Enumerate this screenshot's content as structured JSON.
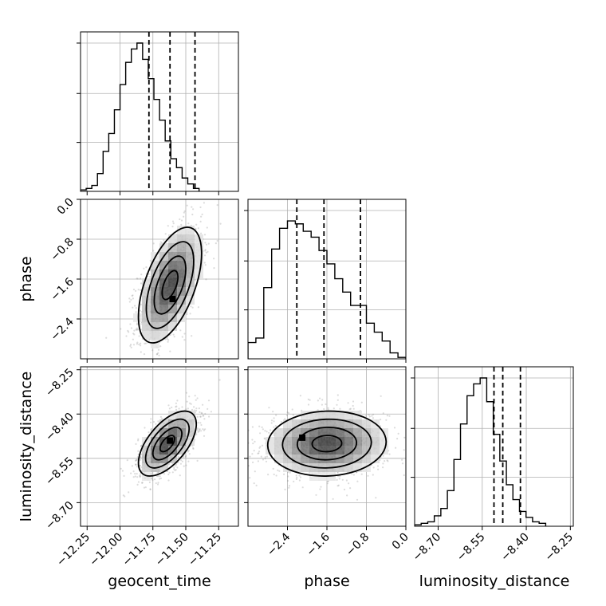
{
  "chart_data": {
    "type": "corner",
    "parameters": [
      "geocent_time",
      "phase",
      "luminosity_distance"
    ],
    "grid": true,
    "ranges": {
      "geocent_time": [
        -12.3,
        -11.1
      ],
      "phase": [
        -3.2,
        0.0
      ],
      "luminosity_distance": [
        -8.78,
        -8.24
      ]
    },
    "ticks": {
      "geocent_time": [
        "-12.25",
        "-12.00",
        "-11.75",
        "-11.50",
        "-11.25"
      ],
      "phase": [
        "-2.4",
        "-1.6",
        "-0.8",
        "0.0"
      ],
      "luminosity_distance": [
        "-8.70",
        "-8.55",
        "-8.40",
        "-8.25"
      ]
    },
    "marginals": {
      "geocent_time": {
        "bin_edges_start": -12.3,
        "bin_width": 0.0429,
        "counts": [
          0.01,
          0.02,
          0.04,
          0.12,
          0.27,
          0.39,
          0.55,
          0.72,
          0.87,
          0.96,
          1.0,
          0.89,
          0.76,
          0.62,
          0.48,
          0.34,
          0.22,
          0.16,
          0.09,
          0.05,
          0.02
        ],
        "quantiles": [
          -11.78,
          -11.62,
          -11.43
        ]
      },
      "phase": {
        "bin_edges_start": -3.2,
        "bin_width": 0.16,
        "counts": [
          0.11,
          0.14,
          0.48,
          0.74,
          0.88,
          0.93,
          0.91,
          0.86,
          0.82,
          0.73,
          0.64,
          0.54,
          0.45,
          0.36,
          0.36,
          0.24,
          0.18,
          0.12,
          0.04,
          0.01
        ],
        "quantiles": [
          -2.21,
          -1.66,
          -0.92
        ]
      },
      "luminosity_distance": {
        "bin_edges_start": -8.78,
        "bin_width": 0.0223,
        "counts": [
          0.01,
          0.02,
          0.03,
          0.07,
          0.12,
          0.24,
          0.45,
          0.69,
          0.88,
          0.96,
          1.0,
          0.84,
          0.62,
          0.44,
          0.28,
          0.18,
          0.1,
          0.06,
          0.03,
          0.02
        ],
        "quantiles": [
          -8.51,
          -8.48,
          -8.42
        ]
      }
    },
    "joint": [
      {
        "x": "geocent_time",
        "y": "phase",
        "mean": [
          -11.62,
          -1.72
        ],
        "std": [
          0.12,
          0.58
        ],
        "rho": 0.55,
        "peak": [
          -11.6,
          -2.0
        ]
      },
      {
        "x": "geocent_time",
        "y": "luminosity_distance",
        "mean": [
          -11.64,
          -8.5
        ],
        "std": [
          0.11,
          0.055
        ],
        "rho": 0.6,
        "peak": [
          -11.62,
          -8.49
        ]
      },
      {
        "x": "phase",
        "y": "luminosity_distance",
        "mean": [
          -1.6,
          -8.5
        ],
        "std": [
          0.6,
          0.055
        ],
        "rho": 0.05,
        "peak": [
          -2.1,
          -8.48
        ]
      }
    ],
    "contour_levels_sigma": [
      0.5,
      1.0,
      1.5,
      2.0
    ],
    "colors": {
      "line": "#000000",
      "grid": "#b0b0b0",
      "scatter": "#808080",
      "hist_fill": "#000000"
    }
  }
}
